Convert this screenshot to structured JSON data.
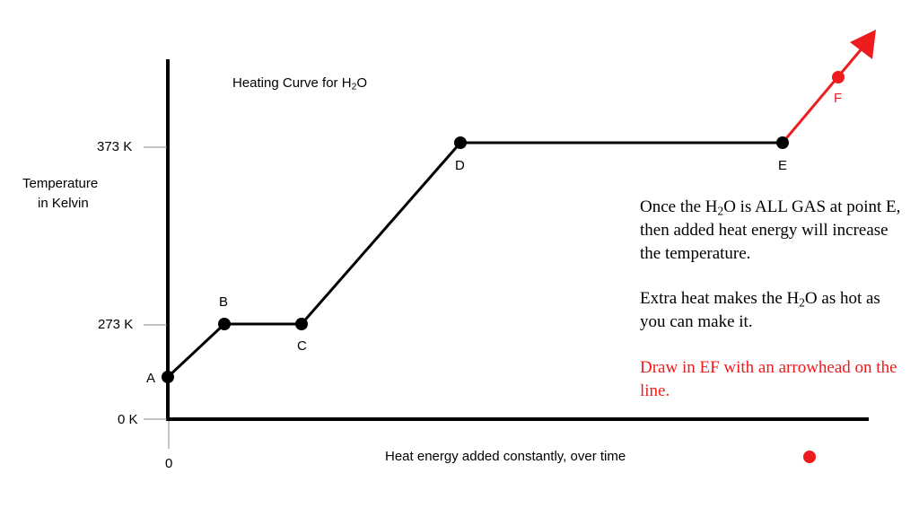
{
  "title": {
    "text": "Heating Curve for H",
    "sub": "2",
    "after": "O"
  },
  "y_axis": {
    "label_line1": "Temperature",
    "label_line2": "in Kelvin",
    "ticks": [
      "373 K",
      "273 K",
      "0 K"
    ]
  },
  "x_axis": {
    "label": "Heat energy added constantly, over time",
    "origin_label": "0"
  },
  "points": [
    {
      "id": "A",
      "label": "A"
    },
    {
      "id": "B",
      "label": "B"
    },
    {
      "id": "C",
      "label": "C"
    },
    {
      "id": "D",
      "label": "D"
    },
    {
      "id": "E",
      "label": "E"
    },
    {
      "id": "F",
      "label": "F"
    }
  ],
  "notes": {
    "p1_a": "Once the H",
    "p1_sub": "2",
    "p1_b": "O is ALL GAS at point E, then added heat energy will increase the temperature.",
    "p2_a": "Extra heat makes the H",
    "p2_sub": "2",
    "p2_b": "O as hot as you can make it.",
    "p3": "Draw in EF with an arrowhead on the line."
  },
  "colors": {
    "curve": "#000000",
    "ef_segment": "#ee1c1c",
    "instruction_text": "#ee1c1c"
  }
}
